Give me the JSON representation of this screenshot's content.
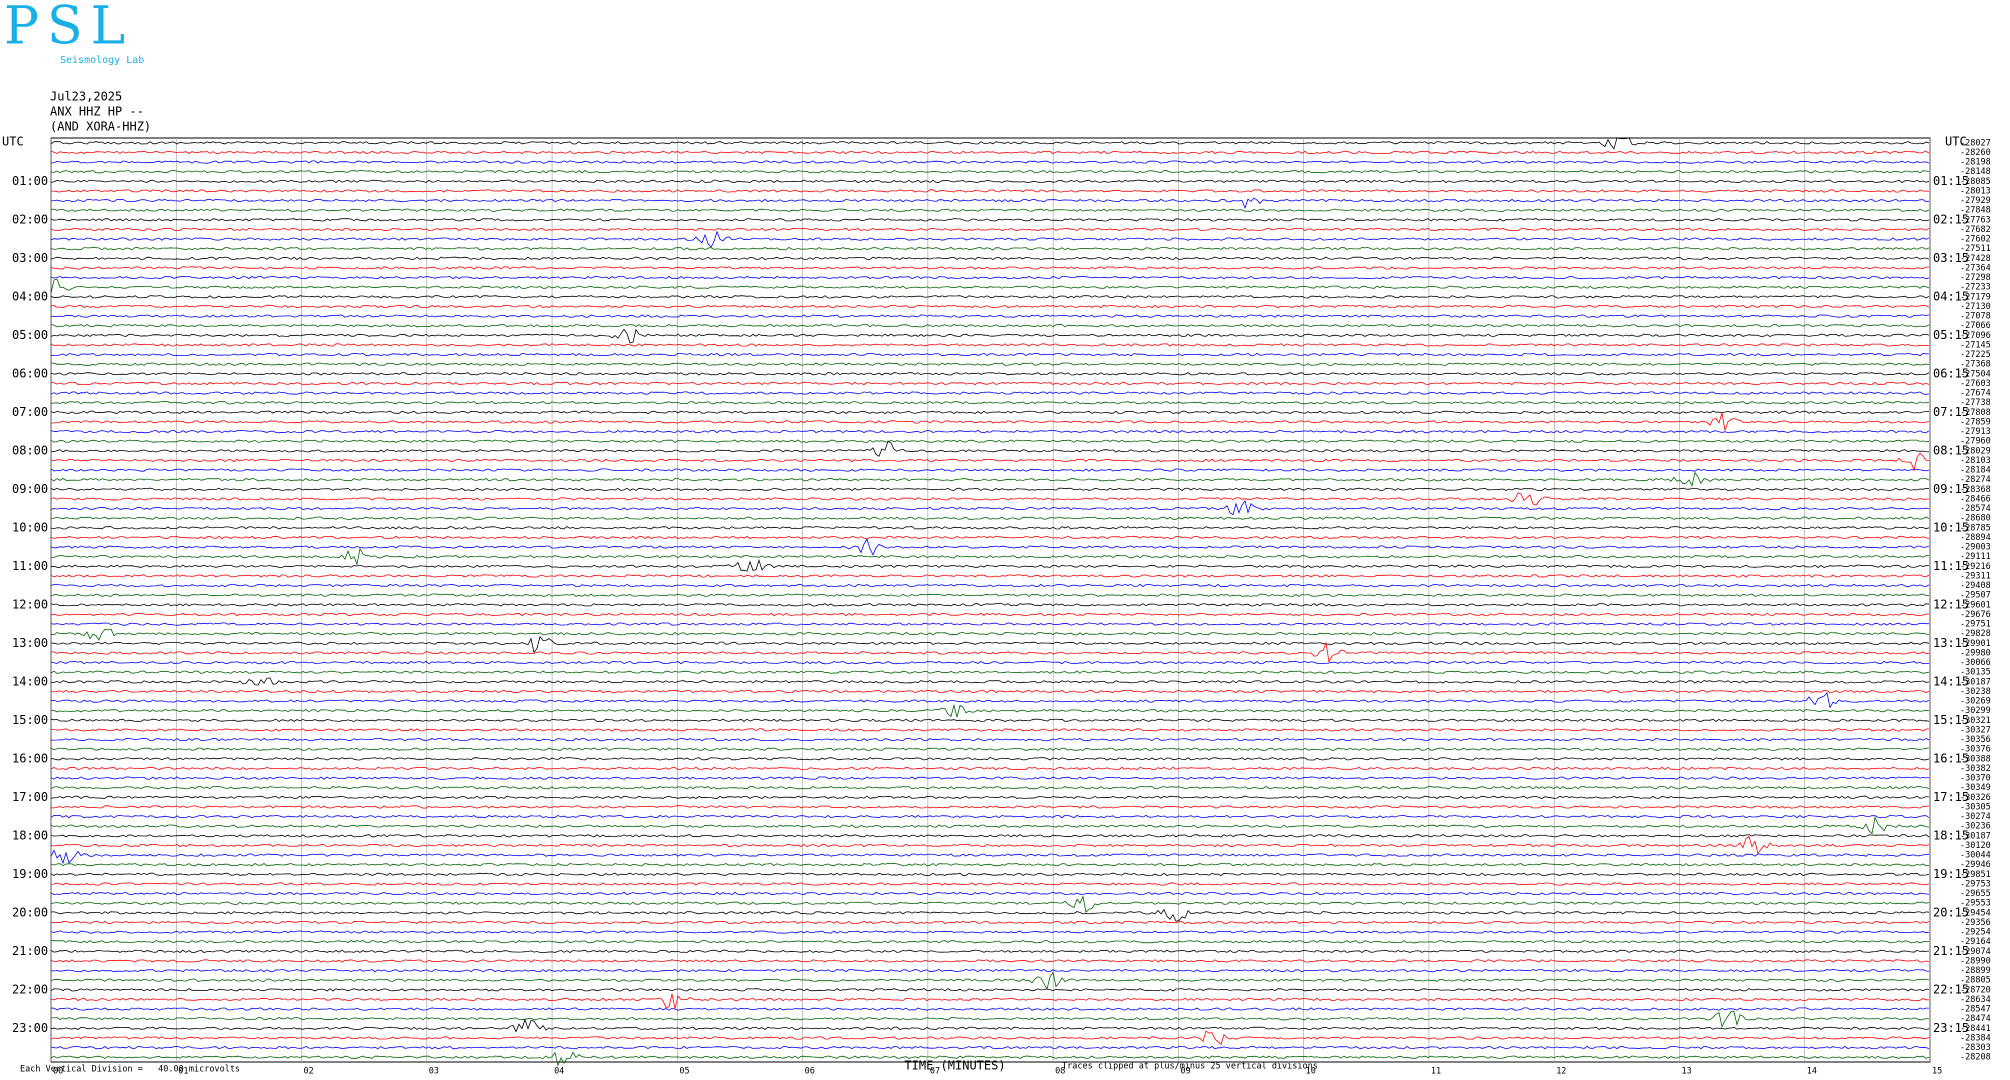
{
  "header": {
    "logo_letters": "PSL",
    "logo_text": "Seismology Lab",
    "date": "Jul23,2025",
    "station": "ANX HHZ HP --",
    "network": "(AND XORA-HHZ)"
  },
  "left_axis": {
    "title": "UTC",
    "labels": [
      "01:00",
      "02:00",
      "03:00",
      "04:00",
      "05:00",
      "06:00",
      "07:00",
      "08:00",
      "09:00",
      "10:00",
      "11:00",
      "12:00",
      "13:00",
      "14:00",
      "15:00",
      "16:00",
      "17:00",
      "18:00",
      "19:00",
      "20:00",
      "21:00",
      "22:00",
      "23:00"
    ]
  },
  "right_axis": {
    "title": "UTC",
    "labels": [
      "01:15",
      "02:15",
      "03:15",
      "04:15",
      "05:15",
      "06:15",
      "07:15",
      "08:15",
      "09:15",
      "10:15",
      "11:15",
      "12:15",
      "13:15",
      "14:15",
      "15:15",
      "16:15",
      "17:15",
      "18:15",
      "19:15",
      "20:15",
      "21:15",
      "22:15",
      "23:15"
    ]
  },
  "trace_offsets": [
    -28027,
    -28260,
    -28198,
    -28148,
    -28085,
    -28013,
    -27929,
    -27848,
    -27763,
    -27682,
    -27602,
    -27511,
    -27428,
    -27364,
    -27298,
    -27233,
    -27179,
    -27130,
    -27078,
    -27066,
    -27096,
    -27145,
    -27225,
    -27368,
    -27504,
    -27603,
    -27674,
    -27738,
    -27808,
    -27859,
    -27913,
    -27960,
    -28029,
    -28103,
    -28184,
    -28274,
    -28368,
    -28466,
    -28574,
    -28680,
    -28785,
    -28894,
    -29003,
    -29111,
    -29216,
    -29311,
    -29408,
    -29507,
    -29601,
    -29676,
    -29751,
    -29828,
    -29901,
    -29980,
    -30066,
    -30135,
    -30187,
    -30238,
    -30269,
    -30299,
    -30321,
    -30327,
    -30356,
    -30376,
    -30388,
    -30382,
    -30370,
    -30349,
    -30326,
    -30305,
    -30274,
    -30236,
    -30187,
    -30120,
    -30044,
    -29946,
    -29851,
    -29753,
    -29655,
    -29553,
    -29454,
    -29356,
    -29254,
    -29164,
    -29074,
    -28990,
    -28899,
    -28805,
    -28720,
    -28634,
    -28547,
    -28474,
    -28441,
    -28384,
    -28303,
    -28208
  ],
  "trace_colors": [
    "#000000",
    "#ff0000",
    "#0000ff",
    "#006400"
  ],
  "x_axis": {
    "title": "TIME (MINUTES)",
    "xlim": [
      0,
      15
    ],
    "ticks": [
      {
        "value": 0,
        "label": "00"
      },
      {
        "value": 1,
        "label": "01"
      },
      {
        "value": 2,
        "label": "02"
      },
      {
        "value": 3,
        "label": "03"
      },
      {
        "value": 4,
        "label": "04"
      },
      {
        "value": 5,
        "label": "05"
      },
      {
        "value": 6,
        "label": "06"
      },
      {
        "value": 7,
        "label": "07"
      },
      {
        "value": 8,
        "label": "08"
      },
      {
        "value": 9,
        "label": "09"
      },
      {
        "value": 10,
        "label": "10"
      },
      {
        "value": 11,
        "label": "11"
      },
      {
        "value": 12,
        "label": "12"
      },
      {
        "value": 13,
        "label": "13"
      },
      {
        "value": 14,
        "label": "14"
      },
      {
        "value": 15,
        "label": "15"
      }
    ]
  },
  "footer": {
    "scale_note": "Each Vertical Division =   40.00 microvolts",
    "clip_note": "Traces clipped at plus/minus 25 vertical divisions"
  }
}
